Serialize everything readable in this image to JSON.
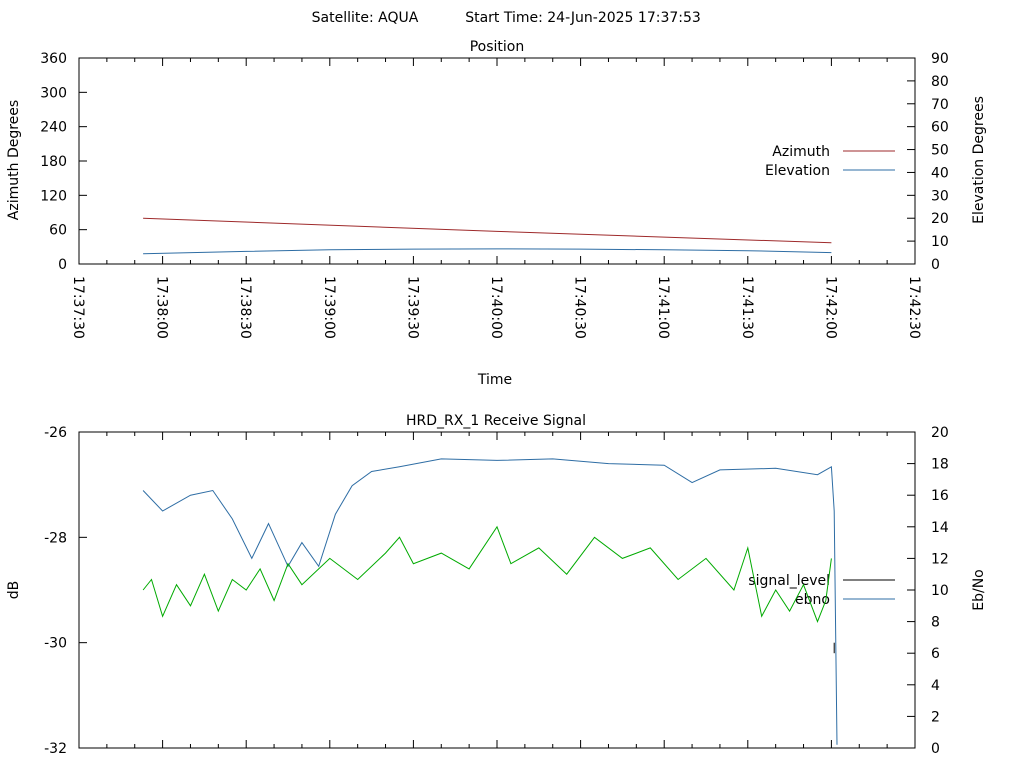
{
  "header": {
    "satellite_text": "Satellite: AQUA",
    "start_time_text": "Start Time: 24-Jun-2025 17:37:53"
  },
  "chart_data": [
    {
      "type": "line",
      "title": "Position",
      "xlabel": "Time",
      "ylabel": "Azimuth Degrees",
      "y2label": "Elevation Degrees",
      "ylim": [
        0,
        360
      ],
      "y2lim": [
        0,
        90
      ],
      "yticks": [
        "0",
        "60",
        "120",
        "180",
        "240",
        "300",
        "360"
      ],
      "y2ticks": [
        "0",
        "10",
        "20",
        "30",
        "40",
        "50",
        "60",
        "70",
        "80",
        "90"
      ],
      "xlim": [
        "17:37:30",
        "17:42:30"
      ],
      "xticks": [
        "17:37:30",
        "17:38:00",
        "17:38:30",
        "17:39:00",
        "17:39:30",
        "17:40:00",
        "17:40:30",
        "17:41:00",
        "17:41:30",
        "17:42:00",
        "17:42:30"
      ],
      "legend_position": "right",
      "series": [
        {
          "name": "Azimuth",
          "axis": "left",
          "color": "#9e2a2b",
          "x": [
            "17:37:53",
            "17:40:00",
            "17:42:00"
          ],
          "y": [
            80,
            57,
            37
          ]
        },
        {
          "name": "Elevation",
          "axis": "right",
          "color": "#2e6da4",
          "x": [
            "17:37:53",
            "17:38:30",
            "17:39:00",
            "17:39:30",
            "17:40:00",
            "17:40:30",
            "17:41:00",
            "17:41:30",
            "17:42:00"
          ],
          "y": [
            4.5,
            5.5,
            6.2,
            6.5,
            6.6,
            6.5,
            6.2,
            5.8,
            5.0
          ]
        }
      ]
    },
    {
      "type": "line",
      "title": "HRD_RX_1 Receive Signal",
      "xlabel": "",
      "ylabel": "dB",
      "y2label": "Eb/No",
      "ylim": [
        -32,
        -26
      ],
      "y2lim": [
        0,
        20
      ],
      "yticks": [
        "-32",
        "-30",
        "-28",
        "-26"
      ],
      "y2ticks": [
        "0",
        "2",
        "4",
        "6",
        "8",
        "10",
        "12",
        "14",
        "16",
        "18",
        "20"
      ],
      "xlim": [
        "17:37:30",
        "17:42:30"
      ],
      "legend_position": "right",
      "series": [
        {
          "name": "signal_level",
          "axis": "left",
          "color": "#000000",
          "x": [
            "17:42:01",
            "17:42:01"
          ],
          "y": [
            -30.0,
            -30.2
          ]
        },
        {
          "name": "ebno",
          "axis": "right",
          "color": "#2e6da4",
          "x": [
            "17:37:53",
            "17:38:00",
            "17:38:10",
            "17:38:18",
            "17:38:25",
            "17:38:32",
            "17:38:38",
            "17:38:45",
            "17:38:50",
            "17:38:56",
            "17:39:02",
            "17:39:08",
            "17:39:15",
            "17:39:25",
            "17:39:40",
            "17:40:00",
            "17:40:20",
            "17:40:40",
            "17:41:00",
            "17:41:10",
            "17:41:20",
            "17:41:40",
            "17:41:55",
            "17:42:00",
            "17:42:01",
            "17:42:02"
          ],
          "y": [
            16.3,
            15.0,
            16.0,
            16.3,
            14.5,
            12.0,
            14.2,
            11.5,
            13.0,
            11.5,
            14.8,
            16.6,
            17.5,
            17.8,
            18.3,
            18.2,
            18.3,
            18.0,
            17.9,
            16.8,
            17.6,
            17.7,
            17.3,
            17.8,
            15.0,
            0.2
          ]
        },
        {
          "name": "",
          "axis": "left",
          "color": "#00aa00",
          "x": [
            "17:37:53",
            "17:37:56",
            "17:38:00",
            "17:38:05",
            "17:38:10",
            "17:38:15",
            "17:38:20",
            "17:38:25",
            "17:38:30",
            "17:38:35",
            "17:38:40",
            "17:38:45",
            "17:38:50",
            "17:39:00",
            "17:39:10",
            "17:39:20",
            "17:39:25",
            "17:39:30",
            "17:39:40",
            "17:39:50",
            "17:40:00",
            "17:40:05",
            "17:40:15",
            "17:40:25",
            "17:40:35",
            "17:40:45",
            "17:40:55",
            "17:41:05",
            "17:41:15",
            "17:41:25",
            "17:41:30",
            "17:41:35",
            "17:41:40",
            "17:41:45",
            "17:41:50",
            "17:41:55",
            "17:41:58",
            "17:42:00"
          ],
          "y": [
            -29.0,
            -28.8,
            -29.5,
            -28.9,
            -29.3,
            -28.7,
            -29.4,
            -28.8,
            -29.0,
            -28.6,
            -29.2,
            -28.5,
            -28.9,
            -28.4,
            -28.8,
            -28.3,
            -28.0,
            -28.5,
            -28.3,
            -28.6,
            -27.8,
            -28.5,
            -28.2,
            -28.7,
            -28.0,
            -28.4,
            -28.2,
            -28.8,
            -28.4,
            -29.0,
            -28.2,
            -29.5,
            -29.0,
            -29.4,
            -28.9,
            -29.6,
            -29.2,
            -28.4
          ]
        }
      ]
    }
  ]
}
